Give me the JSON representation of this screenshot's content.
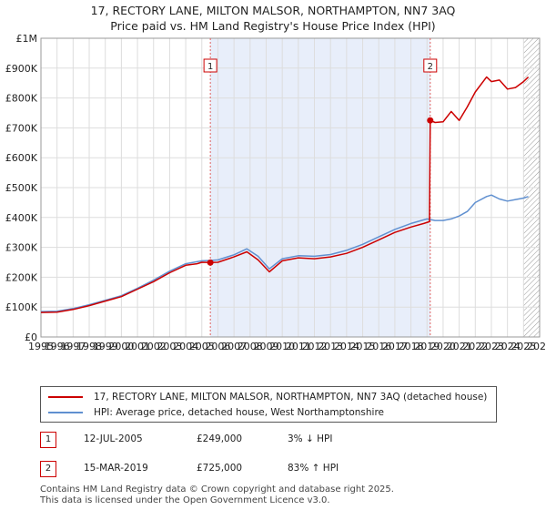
{
  "title_line1": "17, RECTORY LANE, MILTON MALSOR, NORTHAMPTON, NN7 3AQ",
  "title_line2": "Price paid vs. HM Land Registry's House Price Index (HPI)",
  "colors": {
    "property": "#cc0000",
    "hpi": "#6090d0",
    "shade": "#e8eefa",
    "grid": "#dddddd"
  },
  "chart_data": {
    "type": "line",
    "title": "Price paid vs. HM Land Registry's House Price Index (HPI)",
    "xlabel": "",
    "ylabel": "",
    "xlim": [
      1995,
      2026
    ],
    "ylim": [
      0,
      1000000
    ],
    "y_ticks": [
      {
        "value": 0,
        "label": "£0"
      },
      {
        "value": 100000,
        "label": "£100K"
      },
      {
        "value": 200000,
        "label": "£200K"
      },
      {
        "value": 300000,
        "label": "£300K"
      },
      {
        "value": 400000,
        "label": "£400K"
      },
      {
        "value": 500000,
        "label": "£500K"
      },
      {
        "value": 600000,
        "label": "£600K"
      },
      {
        "value": 700000,
        "label": "£700K"
      },
      {
        "value": 800000,
        "label": "£800K"
      },
      {
        "value": 900000,
        "label": "£900K"
      },
      {
        "value": 1000000,
        "label": "£1M"
      }
    ],
    "x_ticks": [
      "1995",
      "1996",
      "1997",
      "1998",
      "1999",
      "2000",
      "2001",
      "2002",
      "2003",
      "2004",
      "2005",
      "2006",
      "2007",
      "2008",
      "2009",
      "2010",
      "2011",
      "2012",
      "2013",
      "2014",
      "2015",
      "2016",
      "2017",
      "2018",
      "2019",
      "2020",
      "2021",
      "2022",
      "2023",
      "2024",
      "2025",
      "2026"
    ],
    "shaded_span": [
      2005.53,
      2019.2
    ],
    "future_hatch_from": 2025.0,
    "grid": true,
    "series": [
      {
        "name": "17, RECTORY LANE, MILTON MALSOR, NORTHAMPTON, NN7 3AQ (detached house)",
        "color": "#cc0000",
        "x": [
          1995,
          1996,
          1997,
          1998,
          1999,
          2000,
          2001,
          2002,
          2003,
          2004,
          2004.7,
          2005,
          2005.53,
          2006,
          2007,
          2007.8,
          2008.5,
          2009.2,
          2010,
          2011,
          2012,
          2013,
          2014,
          2015,
          2016,
          2017,
          2018,
          2018.8,
          2019.15,
          2019.2,
          2019.5,
          2020,
          2020.5,
          2021,
          2021.5,
          2022,
          2022.7,
          2023,
          2023.5,
          2024,
          2024.5,
          2025,
          2025.3
        ],
        "values": [
          82000,
          83000,
          92000,
          105000,
          120000,
          135000,
          160000,
          185000,
          215000,
          240000,
          245000,
          250000,
          249000,
          250000,
          268000,
          285000,
          258000,
          218000,
          255000,
          265000,
          262000,
          268000,
          280000,
          300000,
          325000,
          350000,
          368000,
          380000,
          386000,
          725000,
          718000,
          720000,
          755000,
          725000,
          770000,
          820000,
          870000,
          855000,
          860000,
          830000,
          835000,
          855000,
          870000
        ]
      },
      {
        "name": "HPI: Average price, detached house, West Northamptonshire",
        "color": "#6090d0",
        "x": [
          1995,
          1996,
          1997,
          1998,
          1999,
          2000,
          2001,
          2002,
          2003,
          2004,
          2005,
          2005.53,
          2006,
          2007,
          2007.8,
          2008.5,
          2009.2,
          2010,
          2011,
          2012,
          2013,
          2014,
          2015,
          2016,
          2017,
          2018,
          2019,
          2019.5,
          2020,
          2020.5,
          2021,
          2021.5,
          2022,
          2022.7,
          2023,
          2023.5,
          2024,
          2024.5,
          2025,
          2025.3
        ],
        "values": [
          85000,
          86000,
          95000,
          108000,
          123000,
          138000,
          163000,
          190000,
          220000,
          245000,
          255000,
          256000,
          258000,
          275000,
          295000,
          270000,
          228000,
          262000,
          272000,
          270000,
          276000,
          290000,
          310000,
          335000,
          360000,
          380000,
          395000,
          390000,
          390000,
          395000,
          405000,
          420000,
          450000,
          470000,
          475000,
          462000,
          455000,
          460000,
          465000,
          470000
        ]
      }
    ],
    "annotations": [
      {
        "label": "1",
        "x": 2005.53,
        "y": 249000
      },
      {
        "label": "2",
        "x": 2019.2,
        "y": 725000
      }
    ]
  },
  "legend": {
    "property_label": "17, RECTORY LANE, MILTON MALSOR, NORTHAMPTON, NN7 3AQ (detached house)",
    "hpi_label": "HPI: Average price, detached house, West Northamptonshire"
  },
  "sales": [
    {
      "num": "1",
      "date": "12-JUL-2005",
      "price": "£249,000",
      "hpi": "3% ↓ HPI"
    },
    {
      "num": "2",
      "date": "15-MAR-2019",
      "price": "£725,000",
      "hpi": "83% ↑ HPI"
    }
  ],
  "footer_line1": "Contains HM Land Registry data © Crown copyright and database right 2025.",
  "footer_line2": "This data is licensed under the Open Government Licence v3.0."
}
